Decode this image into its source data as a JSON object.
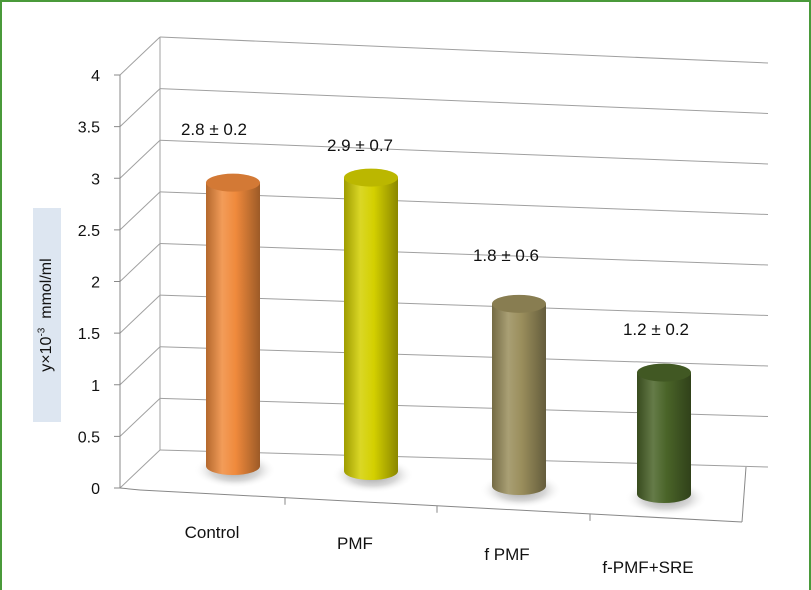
{
  "chart_data": {
    "type": "bar",
    "style": "3d-cylinder",
    "categories": [
      "Control",
      "PMF",
      "f PMF",
      "f-PMF+SRE"
    ],
    "values": [
      2.8,
      2.9,
      1.8,
      1.2
    ],
    "value_labels": [
      "2.8 ± 0.2",
      "2.9 ± 0.7",
      "1.8 ± 0.6",
      "1.2 ± 0.2"
    ],
    "colors": [
      "#f08a3c",
      "#d4d000",
      "#9a8e5c",
      "#4a6428"
    ],
    "ylabel_main": "y×10",
    "ylabel_exp": "-3",
    "ylabel_unit": "mmol/ml",
    "ylim": [
      0,
      4
    ],
    "yticks": [
      "0",
      "0.5",
      "1",
      "1.5",
      "2",
      "2.5",
      "3",
      "3.5",
      "4"
    ],
    "grid": true,
    "legend": false
  }
}
